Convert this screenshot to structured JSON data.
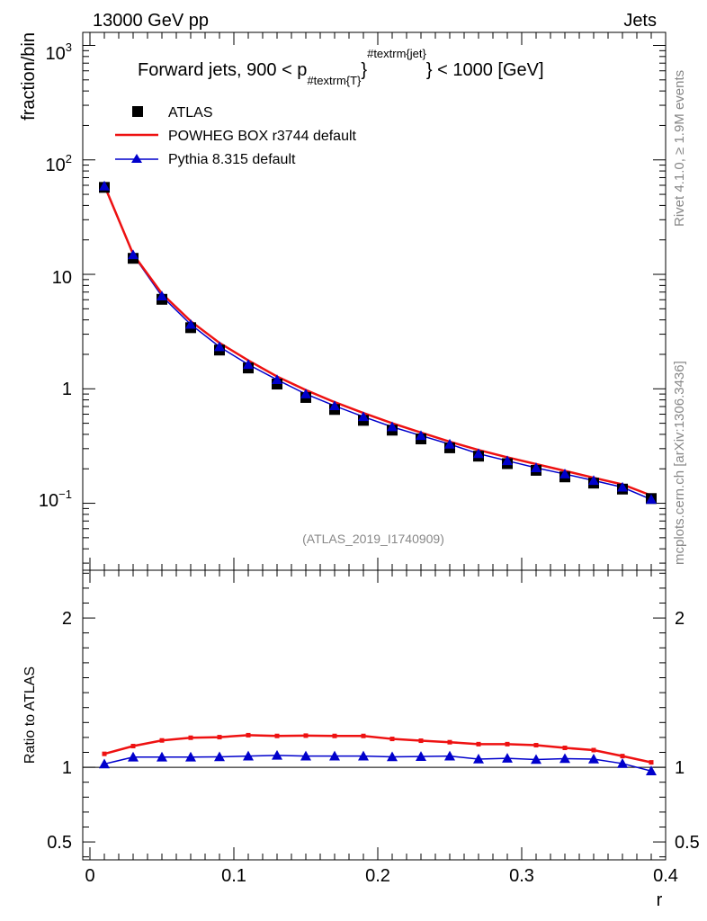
{
  "header": {
    "left": "13000 GeV pp",
    "right": "Jets"
  },
  "side": {
    "rivet_pre": "Rivet 4.1.0, ",
    "rivet_ge": "≥",
    "rivet_post": " 1.9M events",
    "mcplots": "mcplots.cern.ch [arXiv:1306.3436]"
  },
  "chart_data": [
    {
      "type": "scatter",
      "title_pre": "Forward jets, 900 < p",
      "title_sub": "#textrm{T}",
      "title_sup": "#textrm{jet}",
      "title_post": "} < 1000 [GeV]",
      "ylabel": "fraction/bin",
      "yscale": "log",
      "ylim": [
        0.026,
        1300
      ],
      "xlim": [
        -0.005,
        0.4
      ],
      "ytick_labels": {
        "e3_base": "10",
        "e3_exp": "3",
        "e2_base": "10",
        "e2_exp": "2",
        "ten": "10",
        "one": "1",
        "em1_base": "10",
        "em1_exp": "−1"
      },
      "watermark": "(ATLAS_2019_I1740909)",
      "x": [
        0.01,
        0.03,
        0.05,
        0.07,
        0.09,
        0.11,
        0.13,
        0.15,
        0.17,
        0.19,
        0.21,
        0.23,
        0.25,
        0.27,
        0.29,
        0.31,
        0.33,
        0.35,
        0.37,
        0.39
      ],
      "series": [
        {
          "name": "ATLAS",
          "marker": "square",
          "color": "#000000",
          "values": [
            57.5,
            13.8,
            6.05,
            3.42,
            2.18,
            1.52,
            1.1,
            0.84,
            0.66,
            0.53,
            0.435,
            0.365,
            0.305,
            0.258,
            0.222,
            0.194,
            0.17,
            0.15,
            0.133,
            0.11
          ]
        },
        {
          "name": "POWHEG BOX r3744 default",
          "marker": "line",
          "color": "#ee1111",
          "values": [
            60.0,
            15.0,
            6.8,
            3.9,
            2.52,
            1.77,
            1.28,
            0.975,
            0.765,
            0.615,
            0.5,
            0.415,
            0.345,
            0.292,
            0.252,
            0.22,
            0.192,
            0.167,
            0.146,
            0.117
          ]
        },
        {
          "name": "Pythia 8.315 default",
          "marker": "triangle",
          "color": "#0000cc",
          "values": [
            59.0,
            14.8,
            6.45,
            3.65,
            2.33,
            1.63,
            1.2,
            0.9,
            0.71,
            0.57,
            0.465,
            0.39,
            0.328,
            0.271,
            0.235,
            0.204,
            0.18,
            0.158,
            0.138,
            0.108
          ]
        }
      ]
    },
    {
      "type": "line",
      "ylabel": "Ratio to ATLAS",
      "xlabel": "r",
      "ylim": [
        0.38,
        2.32
      ],
      "xlim": [
        -0.005,
        0.4
      ],
      "yticks": [
        0.5,
        1,
        2
      ],
      "ytick_labels": [
        "0.5",
        "1",
        "2"
      ],
      "xticks": [
        0,
        0.1,
        0.2,
        0.3,
        0.4
      ],
      "xtick_labels": [
        "0",
        "0.1",
        "0.2",
        "0.3",
        "0.4"
      ],
      "reference": 1,
      "x": [
        0.01,
        0.03,
        0.05,
        0.07,
        0.09,
        0.11,
        0.13,
        0.15,
        0.17,
        0.19,
        0.21,
        0.23,
        0.25,
        0.27,
        0.29,
        0.31,
        0.33,
        0.35,
        0.37,
        0.39
      ],
      "series": [
        {
          "name": "POWHEG BOX r3744 default",
          "marker": "square-small",
          "color": "#ee1111",
          "values": [
            1.09,
            1.142,
            1.18,
            1.198,
            1.202,
            1.215,
            1.21,
            1.212,
            1.21,
            1.21,
            1.19,
            1.178,
            1.168,
            1.155,
            1.155,
            1.148,
            1.13,
            1.115,
            1.075,
            1.033
          ]
        },
        {
          "name": "Pythia 8.315 default",
          "marker": "triangle",
          "color": "#0000cc",
          "values": [
            1.022,
            1.068,
            1.068,
            1.068,
            1.07,
            1.075,
            1.08,
            1.075,
            1.075,
            1.075,
            1.07,
            1.072,
            1.075,
            1.055,
            1.06,
            1.052,
            1.058,
            1.055,
            1.025,
            0.975
          ]
        }
      ]
    }
  ]
}
